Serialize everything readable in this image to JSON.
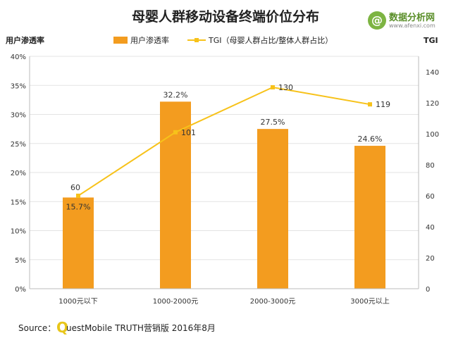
{
  "chart_data": {
    "type": "bar+line",
    "title": "母婴人群移动设备终端价位分布",
    "categories": [
      "1000元以下",
      "1000-2000元",
      "2000-3000元",
      "3000元以上"
    ],
    "left_axis": {
      "label": "用户渗透率",
      "ticks": [
        "0%",
        "5%",
        "10%",
        "15%",
        "20%",
        "25%",
        "30%",
        "35%",
        "40%"
      ],
      "range": [
        0,
        40
      ]
    },
    "right_axis": {
      "label": "TGI",
      "ticks": [
        "0",
        "20",
        "40",
        "60",
        "80",
        "100",
        "120",
        "140"
      ],
      "range": [
        0,
        150
      ]
    },
    "series": [
      {
        "name": "用户渗透率",
        "kind": "bar",
        "axis": "left",
        "color": "#f39c1f",
        "values": [
          15.7,
          32.2,
          27.5,
          24.6
        ],
        "labels": [
          "15.7%",
          "32.2%",
          "27.5%",
          "24.6%"
        ]
      },
      {
        "name": "TGI（母婴人群占比/整体人群占比）",
        "kind": "line",
        "axis": "right",
        "color": "#f7c21a",
        "values": [
          60,
          101,
          130,
          119
        ],
        "labels": [
          "60",
          "101",
          "130",
          "119"
        ]
      }
    ],
    "grid": "horizontal",
    "legend_position": "top-center"
  },
  "source": {
    "prefix": "Source：",
    "brand_q": "Q",
    "brand_rest": "uestMobile TRUTH营销版 2016年8月"
  },
  "logo": {
    "icon": "@",
    "name": "数据分析网",
    "url": "www.afenxi.com"
  }
}
